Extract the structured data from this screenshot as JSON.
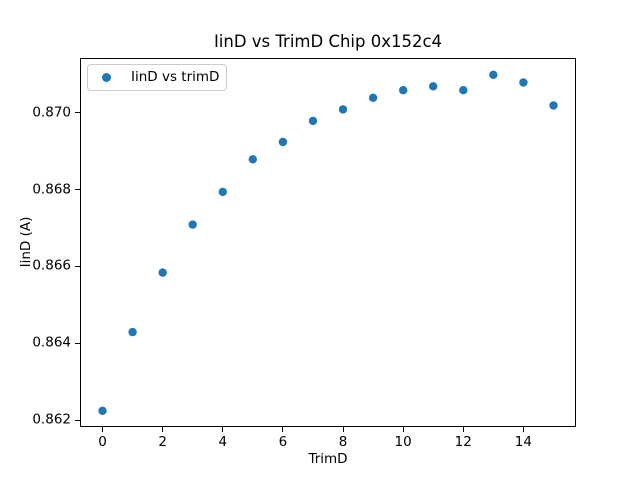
{
  "chart_data": {
    "type": "scatter",
    "title": "IinD vs TrimD Chip 0x152c4",
    "xlabel": "TrimD",
    "ylabel": "IinD (A)",
    "legend": {
      "label": "IinD vs trimD",
      "position": "upper left"
    },
    "marker_color": "#1f77b4",
    "x": [
      0,
      1,
      2,
      3,
      4,
      5,
      6,
      7,
      8,
      9,
      10,
      11,
      12,
      13,
      14,
      15
    ],
    "y": [
      0.86225,
      0.8643,
      0.86585,
      0.8671,
      0.86795,
      0.8688,
      0.86925,
      0.8698,
      0.8701,
      0.8704,
      0.8706,
      0.8707,
      0.8706,
      0.871,
      0.8708,
      0.8702
    ],
    "xlim": [
      -0.75,
      15.75
    ],
    "ylim": [
      0.8618125,
      0.8714375
    ],
    "xticks": [
      0,
      2,
      4,
      6,
      8,
      10,
      12,
      14
    ],
    "xtick_labels": [
      "0",
      "2",
      "4",
      "6",
      "8",
      "10",
      "12",
      "14"
    ],
    "yticks": [
      0.862,
      0.864,
      0.866,
      0.868,
      0.87
    ],
    "ytick_labels": [
      "0.862",
      "0.864",
      "0.866",
      "0.868",
      "0.870"
    ],
    "grid": false
  }
}
